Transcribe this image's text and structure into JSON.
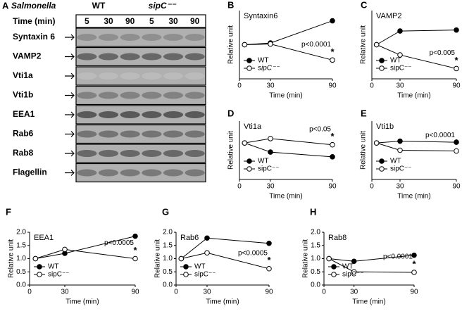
{
  "panel_a": {
    "panel": "A",
    "organism": "Salmonella",
    "groups": [
      "WT",
      "sipC⁻⁻"
    ],
    "time_label": "Time (min)",
    "times": [
      "5",
      "30",
      "90",
      "5",
      "30",
      "90"
    ],
    "rows": [
      "Syntaxin 6",
      "VAMP2",
      "Vti1a",
      "Vti1b",
      "EEA1",
      "Rab6",
      "Rab8",
      "Flagellin"
    ]
  },
  "chart_data": [
    {
      "type": "line",
      "panel": "B",
      "title": "Syntaxin6",
      "xlabel": "Time (min)",
      "ylabel": "Relative unit",
      "x": [
        5,
        30,
        90
      ],
      "xlim": [
        0,
        90
      ],
      "ylim": [
        0,
        2
      ],
      "xticks": [
        0,
        30,
        90
      ],
      "p_value": "p<0.0001",
      "significance": "*",
      "series": [
        {
          "name": "WT",
          "color": "#000000",
          "values": [
            1,
            1.05,
            1.7
          ]
        },
        {
          "name": "sipC⁻⁻",
          "color": "#000000",
          "values": [
            1,
            1.02,
            0.55
          ]
        }
      ]
    },
    {
      "type": "line",
      "panel": "C",
      "title": "VAMP2",
      "xlabel": "Time (min)",
      "ylabel": "Relative unit",
      "x": [
        5,
        30,
        90
      ],
      "xlim": [
        0,
        90
      ],
      "ylim": [
        0,
        2
      ],
      "xticks": [
        0,
        30,
        90
      ],
      "p_value": "p<0.005",
      "significance": "*",
      "series": [
        {
          "name": "WT",
          "color": "#000000",
          "values": [
            1,
            1.4,
            1.43
          ]
        },
        {
          "name": "sipC⁻⁻",
          "color": "#000000",
          "values": [
            1,
            0.7,
            0.3
          ]
        }
      ]
    },
    {
      "type": "line",
      "panel": "D",
      "title": "Vti1a",
      "xlabel": "Time (min)",
      "ylabel": "Relative unit",
      "x": [
        5,
        30,
        90
      ],
      "xlim": [
        0,
        90
      ],
      "ylim": [
        0,
        1.6
      ],
      "xticks": [
        0,
        30,
        90
      ],
      "p_value": "p<0.05",
      "significance": "*",
      "series": [
        {
          "name": "WT",
          "color": "#000000",
          "values": [
            1,
            0.75,
            0.62
          ]
        },
        {
          "name": "sipC⁻⁻",
          "color": "#000000",
          "values": [
            1,
            1.12,
            0.95
          ]
        }
      ]
    },
    {
      "type": "line",
      "panel": "E",
      "title": "Vti1b",
      "xlabel": "Time (min)",
      "ylabel": "Relative unit",
      "x": [
        5,
        30,
        90
      ],
      "xlim": [
        0,
        90
      ],
      "ylim": [
        0,
        1.6
      ],
      "xticks": [
        0,
        30,
        90
      ],
      "p_value": "p<0.0001",
      "significance": "*",
      "series": [
        {
          "name": "WT",
          "color": "#000000",
          "values": [
            1,
            1.05,
            1.02
          ]
        },
        {
          "name": "sipC⁻⁻",
          "color": "#000000",
          "values": [
            1,
            0.8,
            0.78
          ]
        }
      ]
    },
    {
      "type": "line",
      "panel": "F",
      "title": "EEA1",
      "xlabel": "Time (min)",
      "ylabel": "Relative unit",
      "x": [
        5,
        30,
        90
      ],
      "xlim": [
        0,
        90
      ],
      "ylim": [
        0,
        2
      ],
      "xticks": [
        0,
        30,
        90
      ],
      "yticks": [
        {
          "value": 0,
          "label": "0.0"
        },
        {
          "value": 0.5,
          "label": "0.5"
        },
        {
          "value": 1,
          "label": "1.0"
        },
        {
          "value": 1.5,
          "label": "1.5"
        },
        {
          "value": 2,
          "label": "2.0"
        }
      ],
      "p_value": "p<0.0005",
      "significance": "*",
      "series": [
        {
          "name": "WT",
          "color": "#000000",
          "values": [
            1,
            1.2,
            1.85
          ]
        },
        {
          "name": "sipC⁻⁻",
          "color": "#000000",
          "values": [
            1,
            1.35,
            1.0
          ]
        }
      ]
    },
    {
      "type": "line",
      "panel": "G",
      "title": "Rab6",
      "xlabel": "Time (min)",
      "ylabel": "Relative unit",
      "x": [
        5,
        30,
        90
      ],
      "xlim": [
        0,
        90
      ],
      "ylim": [
        0,
        2
      ],
      "xticks": [
        0,
        30,
        90
      ],
      "yticks": [
        {
          "value": 0,
          "label": "0.0"
        },
        {
          "value": 0.5,
          "label": "0.5"
        },
        {
          "value": 1,
          "label": "1.0"
        },
        {
          "value": 1.5,
          "label": "1.5"
        },
        {
          "value": 2,
          "label": "2.0"
        }
      ],
      "p_value": "p<0.0005",
      "significance": "*",
      "series": [
        {
          "name": "WT",
          "color": "#000000",
          "values": [
            1,
            1.78,
            1.58
          ]
        },
        {
          "name": "sipC⁻⁻",
          "color": "#000000",
          "values": [
            1,
            1.22,
            0.62
          ]
        }
      ]
    },
    {
      "type": "line",
      "panel": "H",
      "title": "Rab8",
      "xlabel": "Time (min)",
      "ylabel": "Relative unit",
      "x": [
        5,
        30,
        90
      ],
      "xlim": [
        0,
        90
      ],
      "ylim": [
        0,
        2
      ],
      "xticks": [
        0,
        30,
        90
      ],
      "yticks": [
        {
          "value": 0,
          "label": "0.0"
        },
        {
          "value": 0.5,
          "label": "0.5"
        },
        {
          "value": 1,
          "label": "1.0"
        },
        {
          "value": 1.5,
          "label": "1.5"
        },
        {
          "value": 2,
          "label": "2.0"
        }
      ],
      "p_value": "p<0.0001",
      "significance": "*",
      "series": [
        {
          "name": "WT",
          "color": "#000000",
          "values": [
            1,
            0.9,
            1.13
          ]
        },
        {
          "name": "sipC⁻⁻",
          "color": "#000000",
          "values": [
            1,
            0.5,
            0.48
          ]
        }
      ]
    }
  ]
}
